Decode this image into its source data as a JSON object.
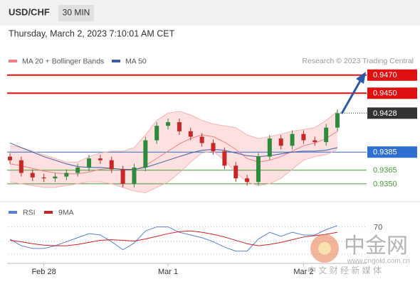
{
  "header": {
    "symbol": "USD/CHF",
    "interval": "30 MIN",
    "timestamp": "Thursday, March 2, 2023 7:10:01 AM CET",
    "credit": "Research © 2023 Trading Central"
  },
  "watermark": {
    "brand": "中金网",
    "tagline": "中 文 财 经 新 媒 体",
    "url": "www.cngold.com.cn"
  },
  "chart_data": [
    {
      "type": "candlestick",
      "categories": [
        null,
        null,
        null,
        "Feb 28",
        null,
        null,
        null,
        null,
        null,
        null,
        null,
        null,
        null,
        null,
        "Mar 1",
        null,
        null,
        null,
        null,
        null,
        null,
        null,
        null,
        null,
        null,
        null,
        "Mar 2",
        null,
        null,
        null
      ],
      "open": [
        0.938,
        0.9376,
        0.9362,
        0.9357,
        0.9356,
        0.9358,
        0.9362,
        0.9368,
        0.9378,
        0.9376,
        0.9366,
        0.935,
        0.9368,
        0.9398,
        0.9414,
        0.9418,
        0.9408,
        0.9402,
        0.9395,
        0.9386,
        0.937,
        0.9356,
        0.9352,
        0.938,
        0.94,
        0.9392,
        0.9405,
        0.9398,
        0.9396,
        0.9412
      ],
      "high": [
        0.9384,
        0.938,
        0.9366,
        0.9361,
        0.9362,
        0.9366,
        0.9372,
        0.9382,
        0.9382,
        0.938,
        0.937,
        0.9372,
        0.9402,
        0.9418,
        0.9422,
        0.9422,
        0.9412,
        0.9406,
        0.9399,
        0.939,
        0.9374,
        0.936,
        0.9384,
        0.9404,
        0.9404,
        0.9409,
        0.9409,
        0.9402,
        0.9416,
        0.9432
      ],
      "low": [
        0.9372,
        0.9358,
        0.9353,
        0.9352,
        0.9352,
        0.9354,
        0.9358,
        0.9364,
        0.9372,
        0.9362,
        0.9346,
        0.9346,
        0.9364,
        0.9394,
        0.941,
        0.9404,
        0.9398,
        0.9391,
        0.9382,
        0.9366,
        0.9352,
        0.9348,
        0.9348,
        0.9376,
        0.9388,
        0.9388,
        0.9394,
        0.9392,
        0.9392,
        0.9408
      ],
      "close": [
        0.9376,
        0.9362,
        0.9357,
        0.9356,
        0.9358,
        0.9362,
        0.9368,
        0.9378,
        0.9376,
        0.9366,
        0.935,
        0.9368,
        0.9398,
        0.9414,
        0.9418,
        0.9408,
        0.9402,
        0.9395,
        0.9386,
        0.937,
        0.9356,
        0.9352,
        0.938,
        0.94,
        0.9392,
        0.9405,
        0.9398,
        0.9396,
        0.9412,
        0.9428
      ],
      "up_color": "#2e8b3e",
      "down_color": "#c62828",
      "series": [
        {
          "name": "MA 20 + Bollinger Bands",
          "color": "#f08080",
          "band_color": "#fde0e0",
          "values": [
            0.9372,
            0.937,
            0.9367,
            0.9364,
            0.9362,
            0.9361,
            0.9361,
            0.9363,
            0.9366,
            0.9367,
            0.9366,
            0.9365,
            0.937,
            0.9378,
            0.9386,
            0.9394,
            0.94,
            0.9404,
            0.9402,
            0.9396,
            0.9388,
            0.9378,
            0.9374,
            0.9376,
            0.938,
            0.9386,
            0.9392,
            0.9395,
            0.94,
            0.9408
          ],
          "upper": [
            0.9392,
            0.939,
            0.9386,
            0.9382,
            0.9378,
            0.9374,
            0.9374,
            0.938,
            0.9384,
            0.9386,
            0.9386,
            0.939,
            0.9404,
            0.942,
            0.9428,
            0.943,
            0.9426,
            0.942,
            0.9416,
            0.9414,
            0.9412,
            0.9404,
            0.94,
            0.9402,
            0.9405,
            0.9408,
            0.941,
            0.9412,
            0.942,
            0.943
          ],
          "lower": [
            0.9352,
            0.935,
            0.9348,
            0.9346,
            0.9346,
            0.9348,
            0.935,
            0.9352,
            0.9352,
            0.935,
            0.9346,
            0.9342,
            0.934,
            0.9346,
            0.9352,
            0.9362,
            0.9374,
            0.9384,
            0.9386,
            0.9376,
            0.9362,
            0.9352,
            0.9348,
            0.935,
            0.9356,
            0.9366,
            0.9376,
            0.938,
            0.9382,
            0.9388
          ]
        },
        {
          "name": "MA 50",
          "color": "#3a5fa8",
          "values": [
            0.9395,
            0.939,
            0.9385,
            0.938,
            0.9376,
            0.9372,
            0.9369,
            0.9368,
            0.9368,
            0.9367,
            0.9366,
            0.9366,
            0.9368,
            0.9372,
            0.9376,
            0.938,
            0.9384,
            0.9387,
            0.9388,
            0.9387,
            0.9384,
            0.9381,
            0.938,
            0.9381,
            0.9383,
            0.9385,
            0.9386,
            0.9386,
            0.9387,
            0.939
          ]
        }
      ],
      "levels": {
        "values": [
          0.947,
          0.945,
          0.9428,
          0.9385,
          0.9365,
          0.935
        ],
        "value_labels": [
          "0.9470",
          "0.9450",
          "0.9428",
          "0.9385",
          "0.9365",
          "0.9350"
        ],
        "colors": [
          "#e01010",
          "#e01010",
          "#333333",
          "#2f6fd0",
          "#4a9a3a",
          "#4a9a3a"
        ],
        "boxed": [
          true,
          true,
          true,
          true,
          false,
          false
        ],
        "dotted": [
          false,
          false,
          true,
          false,
          false,
          false
        ]
      },
      "ylim": [
        0.9335,
        0.948
      ]
    },
    {
      "type": "line",
      "series": [
        {
          "name": "RSI",
          "color": "#5b7fd6",
          "values": [
            52,
            42,
            38,
            38,
            42,
            48,
            54,
            60,
            58,
            48,
            36,
            46,
            64,
            70,
            70,
            62,
            58,
            54,
            48,
            40,
            34,
            34,
            52,
            62,
            56,
            62,
            58,
            58,
            66,
            72
          ]
        },
        {
          "name": "9MA",
          "color": "#d02020",
          "values": [
            50,
            48,
            45,
            43,
            42,
            42,
            44,
            47,
            50,
            51,
            50,
            49,
            52,
            56,
            60,
            63,
            64,
            62,
            59,
            55,
            50,
            45,
            42,
            44,
            47,
            51,
            55,
            57,
            59,
            62
          ]
        }
      ],
      "ylim": [
        20,
        78
      ],
      "yticks": [
        70
      ]
    }
  ]
}
